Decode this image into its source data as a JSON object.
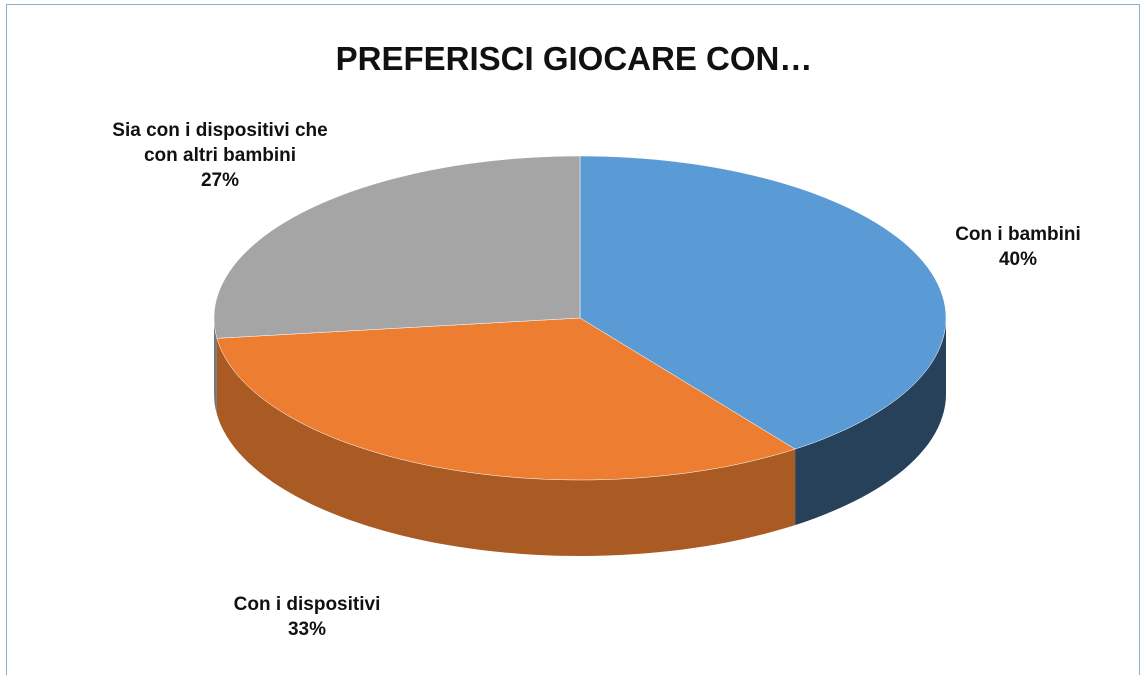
{
  "chart_data": {
    "type": "pie",
    "title": "PREFERISCI GIOCARE CON…",
    "categories": [
      "Con i bambini",
      "Con i dispositivi",
      "Sia con i dispositivi che con altri bambini"
    ],
    "values": [
      40,
      33,
      27
    ],
    "value_labels": [
      "40%",
      "33%",
      "27%"
    ],
    "colors": [
      "#5b9bd5",
      "#ed7d31",
      "#a5a5a5"
    ]
  }
}
